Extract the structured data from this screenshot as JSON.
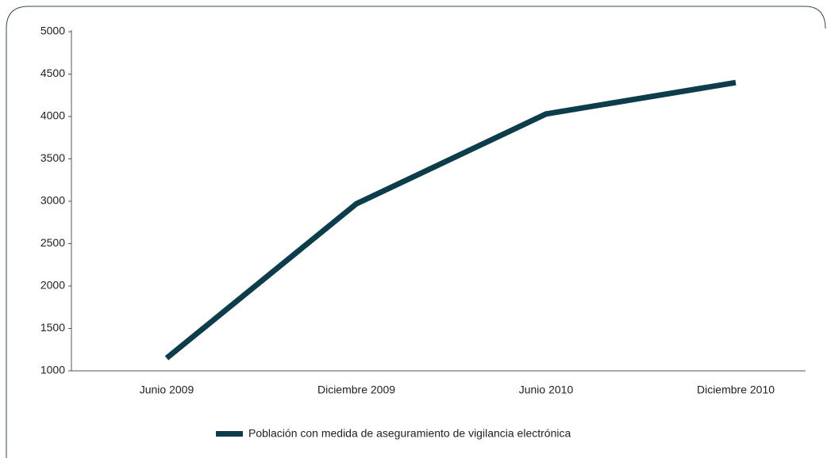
{
  "chart_data": {
    "type": "line",
    "categories": [
      "Junio 2009",
      "Diciembre 2009",
      "Junio 2010",
      "Diciembre 2010"
    ],
    "series": [
      {
        "name": "Población con medida de aseguramiento de vigilancia electrónica",
        "color": "#0d3d4a",
        "values": [
          1150,
          2970,
          4030,
          4400
        ]
      }
    ],
    "ylim": [
      1000,
      5000
    ],
    "yticks": [
      1000,
      1500,
      2000,
      2500,
      3000,
      3500,
      4000,
      4500,
      5000
    ],
    "grid": false,
    "legend": "bottom"
  }
}
